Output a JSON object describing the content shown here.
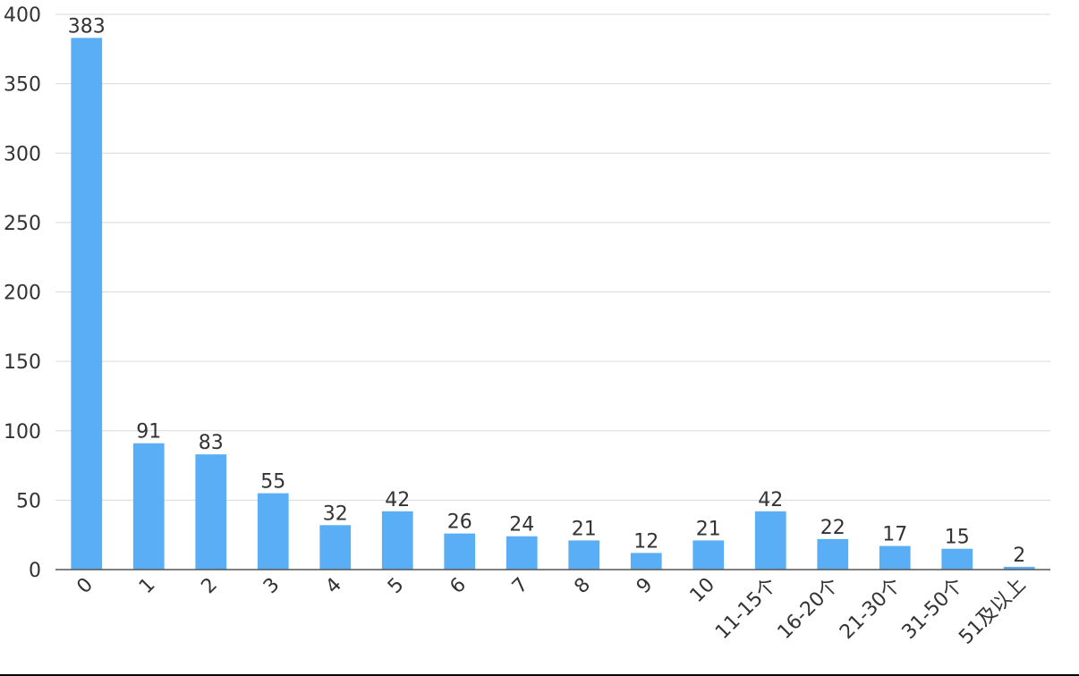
{
  "chart_data": {
    "type": "bar",
    "title": "",
    "xlabel": "",
    "ylabel": "",
    "categories": [
      "0",
      "1",
      "2",
      "3",
      "4",
      "5",
      "6",
      "7",
      "8",
      "9",
      "10",
      "11-15个",
      "16-20个",
      "21-30个",
      "31-50个",
      "51及以上"
    ],
    "values": [
      383,
      91,
      83,
      55,
      32,
      42,
      26,
      24,
      21,
      12,
      21,
      42,
      22,
      17,
      15,
      2
    ],
    "ylim": [
      0,
      400
    ],
    "yticks": [
      0,
      50,
      100,
      150,
      200,
      250,
      300,
      350,
      400
    ],
    "grid": true,
    "legend": "none",
    "bar_color": "#5aaef5"
  }
}
